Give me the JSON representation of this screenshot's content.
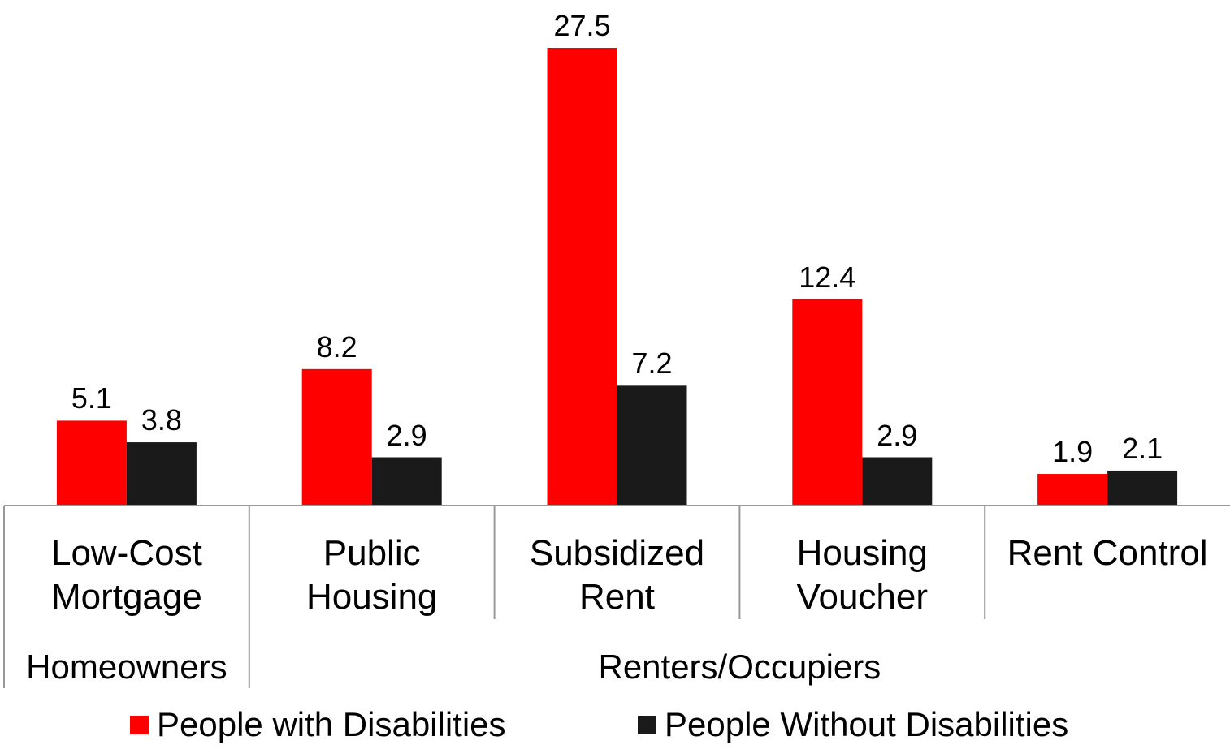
{
  "chart_data": {
    "type": "bar",
    "groups": [
      {
        "name": "Homeowners",
        "categories": [
          "Low-Cost Mortgage"
        ]
      },
      {
        "name": "Renters/Occupiers",
        "categories": [
          "Public Housing",
          "Subsidized Rent",
          "Housing Voucher",
          "Rent Control"
        ]
      }
    ],
    "series": [
      {
        "name": "People with Disabilities",
        "color": "#ff0000",
        "values": [
          5.1,
          8.2,
          27.5,
          12.4,
          1.9
        ]
      },
      {
        "name": "People Without Disabilities",
        "color": "#1a1a1a",
        "values": [
          3.8,
          2.9,
          7.2,
          2.9,
          2.1
        ]
      }
    ]
  }
}
